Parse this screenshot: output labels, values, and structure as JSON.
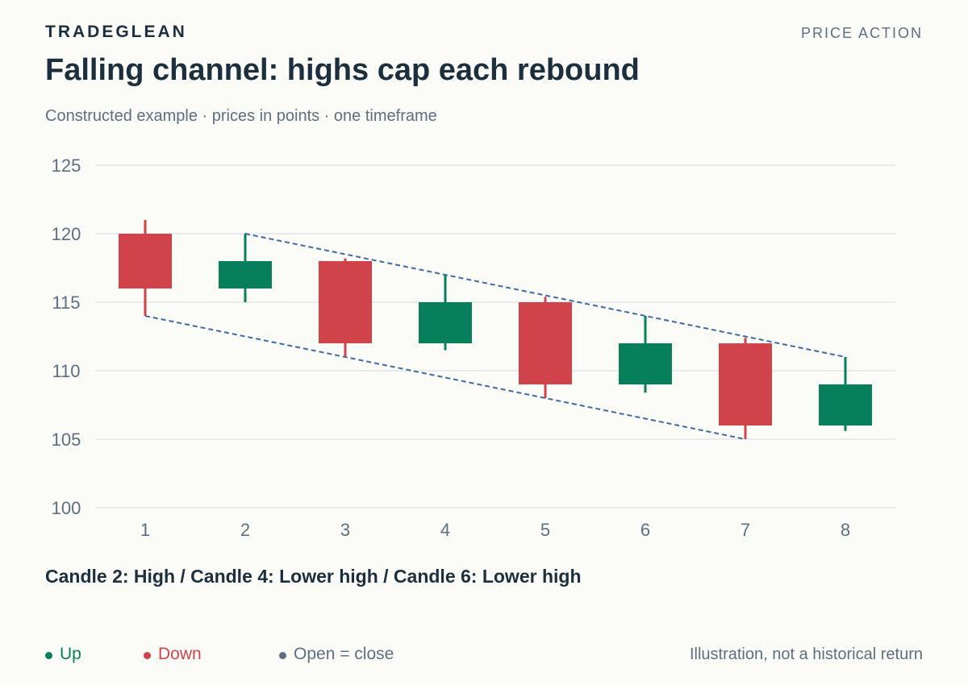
{
  "header": {
    "brand": "TRADEGLEAN",
    "section": "PRICE ACTION",
    "title": "Falling channel: highs cap each rebound",
    "subtitle": "Constructed example · prices in points · one timeframe"
  },
  "chart_data": {
    "type": "candlestick",
    "categories": [
      "1",
      "2",
      "3",
      "4",
      "5",
      "6",
      "7",
      "8"
    ],
    "candles": [
      {
        "x": 1,
        "open": 120,
        "high": 121,
        "low": 114,
        "close": 116
      },
      {
        "x": 2,
        "open": 116,
        "high": 120,
        "low": 115,
        "close": 118
      },
      {
        "x": 3,
        "open": 118,
        "high": 118.2,
        "low": 111,
        "close": 112
      },
      {
        "x": 4,
        "open": 112,
        "high": 117,
        "low": 111.5,
        "close": 115
      },
      {
        "x": 5,
        "open": 115,
        "high": 115.4,
        "low": 108,
        "close": 109
      },
      {
        "x": 6,
        "open": 109,
        "high": 114,
        "low": 108.4,
        "close": 112
      },
      {
        "x": 7,
        "open": 112,
        "high": 112.4,
        "low": 105,
        "close": 106
      },
      {
        "x": 8,
        "open": 106,
        "high": 111,
        "low": 105.6,
        "close": 109
      }
    ],
    "channel": {
      "upper": [
        [
          2,
          120
        ],
        [
          8,
          111
        ]
      ],
      "lower": [
        [
          1,
          114
        ],
        [
          7,
          105
        ]
      ]
    },
    "ylim": [
      100,
      125
    ],
    "yticks": [
      100,
      105,
      110,
      115,
      120,
      125
    ],
    "xlabel": "",
    "ylabel": "",
    "grid": true,
    "colors": {
      "up": "#087f5b",
      "down": "#d1434b",
      "channel": "#3d6aa3",
      "grid": "#e2e6ec",
      "tick": "#5d6f80"
    }
  },
  "annotation": "Candle 2: High / Candle 4: Lower high / Candle 6: Lower high",
  "legend": {
    "up": "Up",
    "down": "Down",
    "flat": "Open = close"
  },
  "footnote": "Illustration, not a historical return"
}
